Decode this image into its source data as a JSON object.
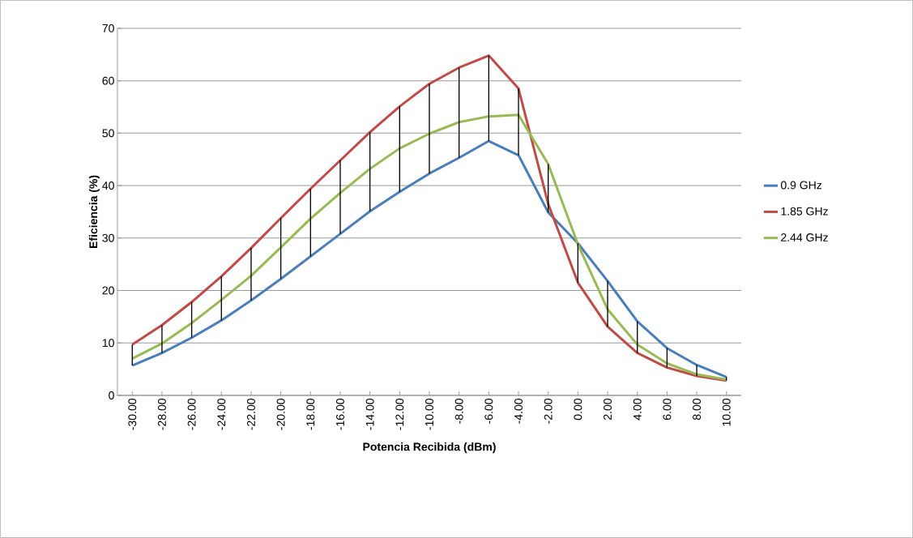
{
  "chart_data": {
    "type": "line",
    "xlabel": "Potencia Recibida (dBm)",
    "ylabel": "Eficiencia (%)",
    "categories": [
      "-30.00",
      "-28.00",
      "-26.00",
      "-24.00",
      "-22.00",
      "-20.00",
      "-18.00",
      "-16.00",
      "-14.00",
      "-12.00",
      "-10.00",
      "-8.00",
      "-6.00",
      "-4.00",
      "-2.00",
      "0.00",
      "2.00",
      "4.00",
      "6.00",
      "8.00",
      "10.00"
    ],
    "series": [
      {
        "name": "0.9 GHz",
        "color": "#4a7ebb",
        "values": [
          5.7,
          8.1,
          11.0,
          14.3,
          18.1,
          22.2,
          26.5,
          30.8,
          35.1,
          38.8,
          42.3,
          45.3,
          48.5,
          45.8,
          34.9,
          29.0,
          21.8,
          14.1,
          9.0,
          5.8,
          3.5
        ]
      },
      {
        "name": "1.85 GHz",
        "color": "#be4b48",
        "values": [
          9.7,
          13.4,
          17.8,
          22.7,
          28.1,
          33.8,
          39.4,
          44.8,
          50.2,
          55.1,
          59.4,
          62.5,
          64.8,
          58.5,
          36.5,
          21.5,
          13.1,
          8.1,
          5.3,
          3.7,
          2.8
        ]
      },
      {
        "name": "2.44 GHz",
        "color": "#98b954",
        "values": [
          7.0,
          9.9,
          13.8,
          18.2,
          22.8,
          28.2,
          33.7,
          38.6,
          43.2,
          47.1,
          49.9,
          52.1,
          53.2,
          53.5,
          44.1,
          28.8,
          16.4,
          9.7,
          6.1,
          4.0,
          3.0
        ]
      },
      {
        "type": "bar",
        "color": "#000000",
        "base": [
          5.7,
          8.1,
          11.0,
          14.3,
          18.1,
          22.2,
          26.5,
          30.8,
          35.1,
          38.8,
          42.3,
          45.3,
          48.5,
          45.8,
          34.9,
          21.5,
          13.1,
          8.1,
          5.3,
          3.7,
          2.8
        ],
        "values": [
          4.0,
          5.3,
          6.8,
          8.4,
          10.0,
          11.6,
          12.9,
          14.0,
          15.1,
          16.3,
          17.1,
          17.2,
          16.3,
          12.7,
          9.2,
          7.5,
          8.7,
          6.0,
          3.7,
          2.1,
          0.7
        ]
      }
    ],
    "ylim": [
      0,
      70
    ],
    "yticks": [
      0,
      10,
      20,
      30,
      40,
      50,
      60,
      70
    ],
    "grid": "y",
    "legend": "right",
    "marker": "none",
    "line_style": "solid"
  }
}
